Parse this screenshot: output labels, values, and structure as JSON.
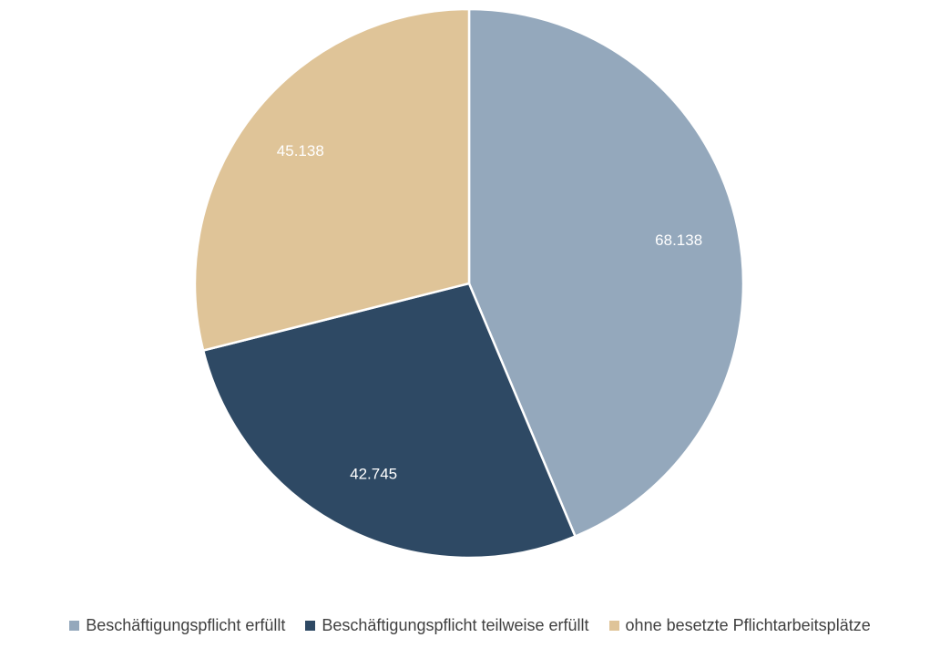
{
  "chart_data": {
    "type": "pie",
    "title": "",
    "start_angle_deg": 0,
    "direction": "clockwise",
    "slices": [
      {
        "label": "Beschäftigungspflicht erfüllt",
        "value": 68138,
        "display": "68.138",
        "color": "#94a8bc"
      },
      {
        "label": "Beschäftigungspflicht teilweise erfüllt",
        "value": 42745,
        "display": "42.745",
        "color": "#2e4964"
      },
      {
        "label": "ohne besetzte Pflichtarbeitsplätze",
        "value": 45138,
        "display": "45.138",
        "color": "#dfc498"
      }
    ],
    "legend_position": "bottom",
    "data_label_color": "#ffffff"
  }
}
